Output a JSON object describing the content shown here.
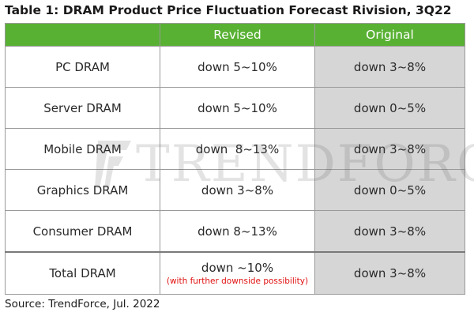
{
  "title": "Table 1: DRAM Product Price Fluctuation Forecast Rivision, 3Q22",
  "header": {
    "corner": "",
    "revised": "Revised",
    "original": "Original"
  },
  "rows": [
    {
      "label": "PC DRAM",
      "revised": "down 5~10%",
      "original": "down 3~8%"
    },
    {
      "label": "Server DRAM",
      "revised": "down 5~10%",
      "original": "down 0~5%"
    },
    {
      "label": "Mobile DRAM",
      "revised": "down  8~13%",
      "original": "down 3~8%"
    },
    {
      "label": "Graphics DRAM",
      "revised": "down 3~8%",
      "original": "down 0~5%"
    },
    {
      "label": "Consumer DRAM",
      "revised": "down 8~13%",
      "original": "down 3~8%"
    }
  ],
  "total": {
    "label": "Total DRAM",
    "revised": "down ~10%",
    "revised_note": "(with further downside possibility)",
    "original": "down 3~8%"
  },
  "watermark": "TRENDFORCE",
  "source": "Source: TrendForce, Jul. 2022",
  "colors": {
    "header_green": "#58b133",
    "original_gray": "#d6d6d6",
    "note_red": "#e01010"
  }
}
